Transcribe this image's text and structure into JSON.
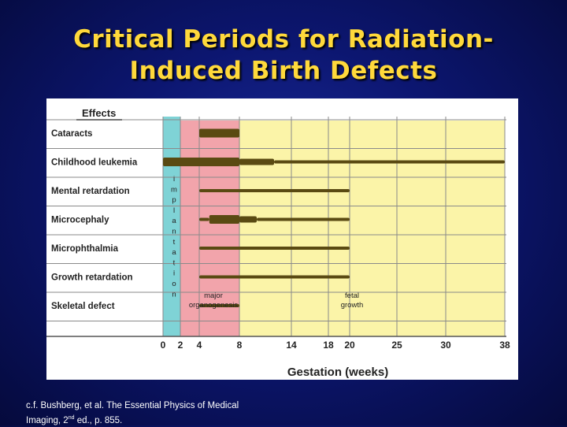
{
  "title": {
    "line1": "Critical Periods for Radiation-",
    "line2": "Induced Birth Defects"
  },
  "caption": {
    "line1": "c.f. Bushberg, et al. The Essential Physics of Medical",
    "line2_pre": "Imaging, 2",
    "line2_sup": "nd",
    "line2_post": " ed., p. 855."
  },
  "colors": {
    "preimplantation": "#7fd3d6",
    "organogenesis": "#f2a4ab",
    "fetal": "#fbf4a8",
    "bar": "#5a4a12"
  },
  "chart_data": {
    "type": "bar",
    "title": "",
    "legend_header": "Effects",
    "xlabel": "Gestation (weeks)",
    "x_ticks": [
      0,
      2,
      4,
      8,
      14,
      18,
      20,
      25,
      30,
      38
    ],
    "categories": [
      "Cataracts",
      "Childhood leukemia",
      "Mental retardation",
      "Microcephaly",
      "Microphthalmia",
      "Growth retardation",
      "Skeletal defect"
    ],
    "regions": [
      {
        "label": "implantation",
        "vertical": true,
        "from": 0,
        "to": 2
      },
      {
        "label": "major organogenesis",
        "from": 2,
        "to": 8
      },
      {
        "label": "fetal growth",
        "from": 8,
        "to": 38
      }
    ],
    "series": [
      {
        "effect": "Cataracts",
        "segments": [
          {
            "from": 4,
            "to": 8,
            "level": "thick"
          }
        ]
      },
      {
        "effect": "Childhood leukemia",
        "segments": [
          {
            "from": 0,
            "to": 8,
            "level": "thick"
          },
          {
            "from": 8,
            "to": 12,
            "level": "medium"
          },
          {
            "from": 12,
            "to": 38,
            "level": "thin"
          }
        ]
      },
      {
        "effect": "Mental retardation",
        "segments": [
          {
            "from": 4,
            "to": 20,
            "level": "thin"
          }
        ]
      },
      {
        "effect": "Microcephaly",
        "segments": [
          {
            "from": 4,
            "to": 5,
            "level": "thin"
          },
          {
            "from": 5,
            "to": 8,
            "level": "thick"
          },
          {
            "from": 8,
            "to": 10,
            "level": "medium"
          },
          {
            "from": 10,
            "to": 20,
            "level": "thin"
          }
        ]
      },
      {
        "effect": "Microphthalmia",
        "segments": [
          {
            "from": 4,
            "to": 20,
            "level": "thin"
          }
        ]
      },
      {
        "effect": "Growth retardation",
        "segments": [
          {
            "from": 4,
            "to": 20,
            "level": "thin"
          }
        ]
      },
      {
        "effect": "Skeletal defect",
        "segments": [
          {
            "from": 4,
            "to": 8,
            "level": "thin"
          }
        ]
      }
    ]
  }
}
